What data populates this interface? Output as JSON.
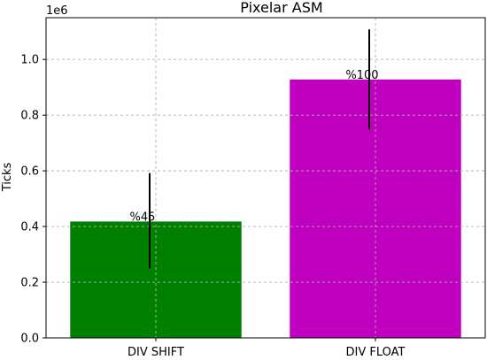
{
  "chart_data": {
    "type": "bar",
    "title": "Pixelar ASM",
    "xlabel": "",
    "ylabel": "Ticks",
    "y_offset_label": "1e6",
    "ylim": [
      0,
      1150000
    ],
    "yticks": [
      0,
      200000,
      400000,
      600000,
      800000,
      1000000
    ],
    "ytick_labels": [
      "0.0",
      "0.2",
      "0.4",
      "0.6",
      "0.8",
      "1.0"
    ],
    "grid": true,
    "categories": [
      "DIV SHIFT",
      "DIV FLOAT"
    ],
    "values": [
      418000,
      928000
    ],
    "errors": [
      {
        "low": 250000,
        "high": 592000
      },
      {
        "low": 748000,
        "high": 1108000
      }
    ],
    "bar_labels": [
      "%45",
      "%100"
    ],
    "colors": [
      "#008000",
      "#bf00bf"
    ],
    "error_color": "#000000"
  }
}
